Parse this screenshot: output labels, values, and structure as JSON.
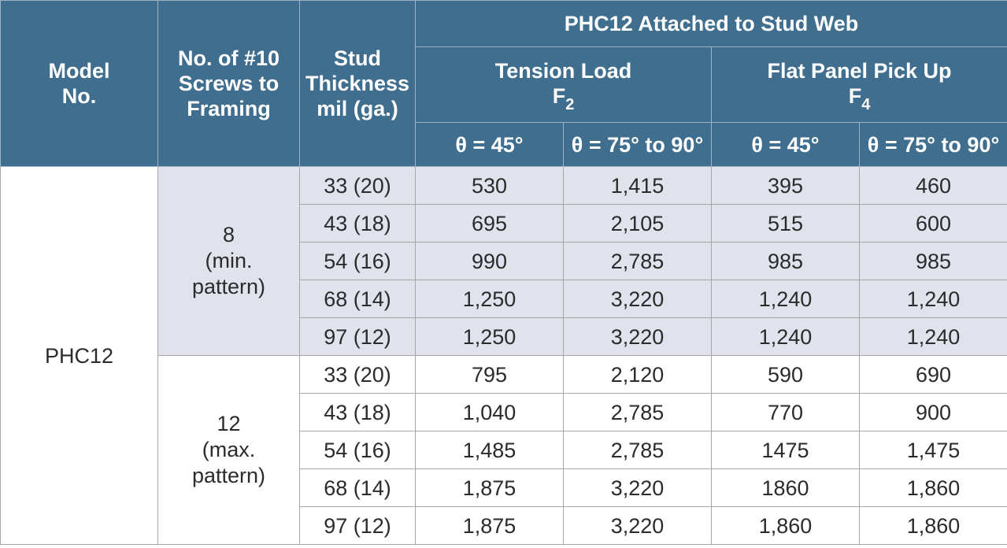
{
  "header": {
    "model": [
      "Model",
      "No."
    ],
    "screws": [
      "No. of #10",
      "Screws to",
      "Framing"
    ],
    "stud": [
      "Stud",
      "Thickness",
      "mil (ga.)"
    ],
    "group": "PHC12 Attached to Stud Web",
    "tension": {
      "label": "Tension Load",
      "f": "F",
      "sub": "2"
    },
    "flat": {
      "label": "Flat Panel Pick Up",
      "f": "F",
      "sub": "4"
    },
    "angles": [
      "θ = 45°",
      "θ = 75° to 90°",
      "θ = 45°",
      "θ = 75° to 90°"
    ]
  },
  "model": "PHC12",
  "groups": [
    {
      "screws": [
        "8",
        "(min.",
        "pattern)"
      ],
      "rows": [
        {
          "stud": "33 (20)",
          "v": [
            "530",
            "1,415",
            "395",
            "460"
          ]
        },
        {
          "stud": "43 (18)",
          "v": [
            "695",
            "2,105",
            "515",
            "600"
          ]
        },
        {
          "stud": "54 (16)",
          "v": [
            "990",
            "2,785",
            "985",
            "985"
          ]
        },
        {
          "stud": "68 (14)",
          "v": [
            "1,250",
            "3,220",
            "1,240",
            "1,240"
          ]
        },
        {
          "stud": "97 (12)",
          "v": [
            "1,250",
            "3,220",
            "1,240",
            "1,240"
          ]
        }
      ]
    },
    {
      "screws": [
        "12",
        "(max.",
        "pattern)"
      ],
      "rows": [
        {
          "stud": "33 (20)",
          "v": [
            "795",
            "2,120",
            "590",
            "690"
          ]
        },
        {
          "stud": "43 (18)",
          "v": [
            "1,040",
            "2,785",
            "770",
            "900"
          ]
        },
        {
          "stud": "54 (16)",
          "v": [
            "1,485",
            "2,785",
            "1475",
            "1,475"
          ]
        },
        {
          "stud": "68 (14)",
          "v": [
            "1,875",
            "3,220",
            "1860",
            "1,860"
          ]
        },
        {
          "stud": "97 (12)",
          "v": [
            "1,875",
            "3,220",
            "1,860",
            "1,860"
          ]
        }
      ]
    }
  ]
}
